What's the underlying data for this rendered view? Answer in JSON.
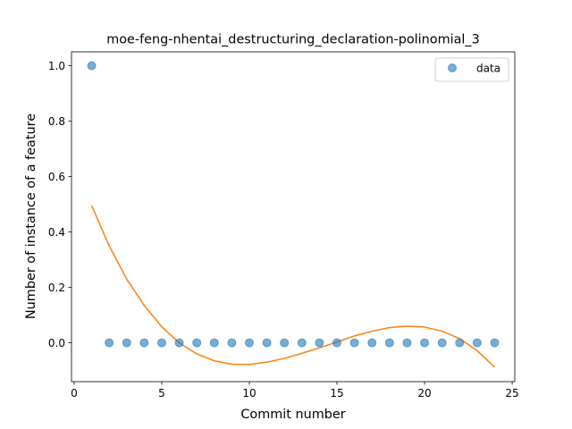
{
  "chart_data": {
    "type": "scatter",
    "title": "moe-feng-nhentai_destructuring_declaration-polinomial_3",
    "xlabel": "Commit number",
    "ylabel": "Number of instance of a feature",
    "xlim": [
      -0.15,
      25.15
    ],
    "ylim": [
      -0.14,
      1.05
    ],
    "xticks": [
      0,
      5,
      10,
      15,
      20,
      25
    ],
    "xtick_labels": [
      "0",
      "5",
      "10",
      "15",
      "20",
      "25"
    ],
    "yticks": [
      0.0,
      0.2,
      0.4,
      0.6,
      0.8,
      1.0
    ],
    "ytick_labels": [
      "0.0",
      "0.2",
      "0.4",
      "0.6",
      "0.8",
      "1.0"
    ],
    "grid": false,
    "legend_position": "top-right",
    "series": [
      {
        "name": "data",
        "kind": "scatter",
        "color": "#1f77b4",
        "x": [
          1,
          2,
          3,
          4,
          5,
          6,
          7,
          8,
          9,
          10,
          11,
          12,
          13,
          14,
          15,
          16,
          17,
          18,
          19,
          20,
          21,
          22,
          23,
          24
        ],
        "y": [
          1,
          0,
          0,
          0,
          0,
          0,
          0,
          0,
          0,
          0,
          0,
          0,
          0,
          0,
          0,
          0,
          0,
          0,
          0,
          0,
          0,
          0,
          0,
          0
        ]
      },
      {
        "kind": "line",
        "color": "#ff7f0e",
        "x": [
          1,
          2,
          3,
          4,
          5,
          6,
          7,
          8,
          9,
          10,
          11,
          12,
          13,
          14,
          15,
          16,
          17,
          18,
          19,
          20,
          21,
          22,
          23,
          24
        ],
        "y": [
          0.495,
          0.35,
          0.23,
          0.135,
          0.058,
          0.0,
          -0.04,
          -0.065,
          -0.077,
          -0.078,
          -0.07,
          -0.056,
          -0.038,
          -0.018,
          0.003,
          0.025,
          0.042,
          0.055,
          0.06,
          0.057,
          0.042,
          0.015,
          -0.028,
          -0.088
        ]
      }
    ]
  }
}
